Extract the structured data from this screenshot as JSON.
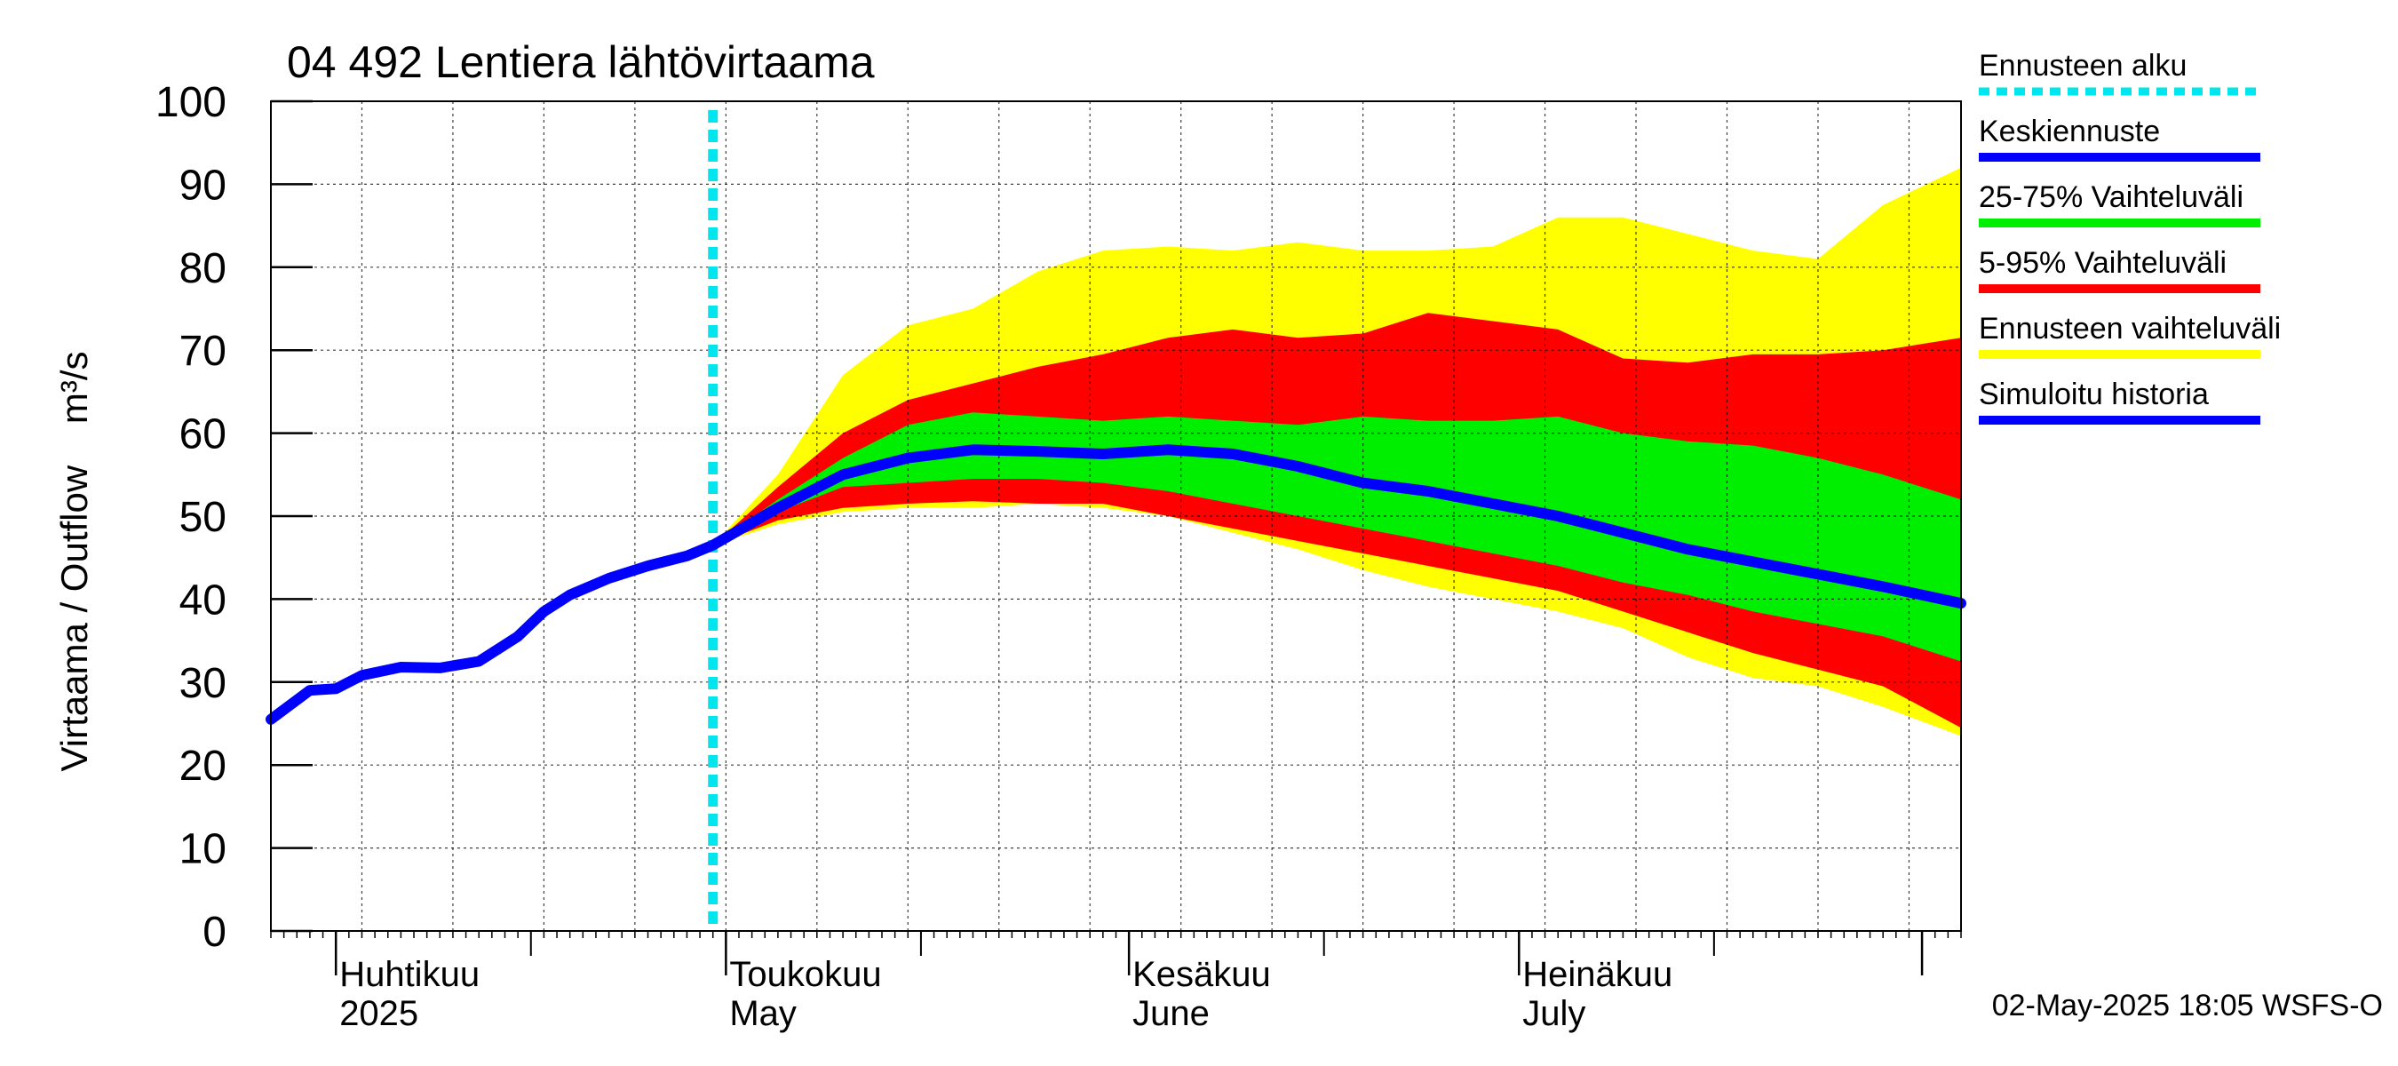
{
  "chart_data": {
    "type": "area",
    "title": "04 492 Lentiera lähtövirtaama",
    "ylabel": "Virtaama / Outflow    m³/s",
    "ylim": [
      0,
      100
    ],
    "y_ticks": [
      0,
      10,
      20,
      30,
      40,
      50,
      60,
      70,
      80,
      90,
      100
    ],
    "xlim": [
      "2025-03-27",
      "2025-08-04"
    ],
    "grid": true,
    "legend_position": "right",
    "month_labels": [
      {
        "fi": "Huhtikuu",
        "en": "2025",
        "date": "2025-04-01"
      },
      {
        "fi": "Toukokuu",
        "en": "May",
        "date": "2025-05-01"
      },
      {
        "fi": "Kesäkuu",
        "en": "June",
        "date": "2025-06-01"
      },
      {
        "fi": "Heinäkuu",
        "en": "July",
        "date": "2025-07-01"
      }
    ],
    "forecast_start": "2025-04-30",
    "timestamp": "02-May-2025 18:05 WSFS-O",
    "legend": [
      {
        "label": "Ennusteen alku",
        "color": "#00e5ee",
        "style": "dotted"
      },
      {
        "label": "Keskiennuste",
        "color": "#0000ff",
        "style": "solid"
      },
      {
        "label": "25-75% Vaihteluväli",
        "color": "#00ee00",
        "style": "solid"
      },
      {
        "label": "5-95% Vaihteluväli",
        "color": "#ff0000",
        "style": "solid"
      },
      {
        "label": "Ennusteen vaihteluväli",
        "color": "#ffff00",
        "style": "solid"
      },
      {
        "label": "Simuloitu historia",
        "color": "#0000ff",
        "style": "solid"
      }
    ],
    "colors": {
      "full_range": "#ffff00",
      "p5_95": "#ff0000",
      "p25_75": "#00ee00",
      "median": "#0000ff",
      "history": "#0000ff",
      "forecast_start": "#00e5ee"
    },
    "history": {
      "x": [
        "2025-03-27",
        "2025-03-30",
        "2025-04-01",
        "2025-04-03",
        "2025-04-06",
        "2025-04-09",
        "2025-04-12",
        "2025-04-15",
        "2025-04-17",
        "2025-04-19",
        "2025-04-22",
        "2025-04-25",
        "2025-04-28",
        "2025-04-30"
      ],
      "y": [
        25.5,
        29.0,
        29.2,
        30.8,
        31.8,
        31.7,
        32.5,
        35.5,
        38.5,
        40.5,
        42.5,
        44.0,
        45.2,
        46.5
      ]
    },
    "forecast": {
      "x": [
        "2025-04-30",
        "2025-05-05",
        "2025-05-10",
        "2025-05-15",
        "2025-05-20",
        "2025-05-25",
        "2025-05-30",
        "2025-06-04",
        "2025-06-09",
        "2025-06-14",
        "2025-06-19",
        "2025-06-24",
        "2025-06-29",
        "2025-07-04",
        "2025-07-09",
        "2025-07-14",
        "2025-07-19",
        "2025-07-24",
        "2025-07-29",
        "2025-08-04"
      ],
      "median": [
        46.5,
        51.0,
        55.0,
        57.0,
        58.0,
        57.8,
        57.5,
        58.0,
        57.5,
        56.0,
        54.0,
        53.0,
        51.5,
        50.0,
        48.0,
        46.0,
        44.5,
        43.0,
        41.5,
        39.5
      ],
      "p25": [
        46.5,
        50.5,
        53.5,
        54.0,
        54.5,
        54.5,
        54.0,
        53.0,
        51.5,
        50.0,
        48.5,
        47.0,
        45.5,
        44.0,
        42.0,
        40.5,
        38.5,
        37.0,
        35.5,
        32.5
      ],
      "p75": [
        46.5,
        52.0,
        57.0,
        61.0,
        62.5,
        62.0,
        61.5,
        62.0,
        61.5,
        61.0,
        62.0,
        61.5,
        61.5,
        62.0,
        60.0,
        59.0,
        58.5,
        57.0,
        55.0,
        52.0
      ],
      "p5": [
        46.5,
        49.5,
        51.0,
        51.5,
        51.8,
        51.5,
        51.5,
        50.0,
        48.5,
        47.0,
        45.5,
        44.0,
        42.5,
        41.0,
        38.5,
        36.0,
        33.5,
        31.5,
        29.5,
        24.5
      ],
      "p95": [
        46.5,
        53.5,
        60.0,
        64.0,
        66.0,
        68.0,
        69.5,
        71.5,
        72.5,
        71.5,
        72.0,
        74.5,
        73.5,
        72.5,
        69.0,
        68.5,
        69.5,
        69.5,
        70.0,
        71.5
      ],
      "min": [
        46.5,
        49.0,
        50.5,
        51.0,
        51.0,
        51.5,
        51.0,
        50.0,
        48.0,
        46.0,
        43.5,
        41.5,
        40.0,
        38.5,
        36.5,
        33.0,
        30.5,
        29.5,
        27.0,
        23.5
      ],
      "max": [
        46.5,
        55.0,
        67.0,
        73.0,
        75.0,
        79.5,
        82.0,
        82.5,
        82.0,
        83.0,
        82.0,
        82.0,
        82.5,
        86.0,
        86.0,
        84.0,
        82.0,
        81.0,
        87.5,
        92.0
      ]
    }
  }
}
